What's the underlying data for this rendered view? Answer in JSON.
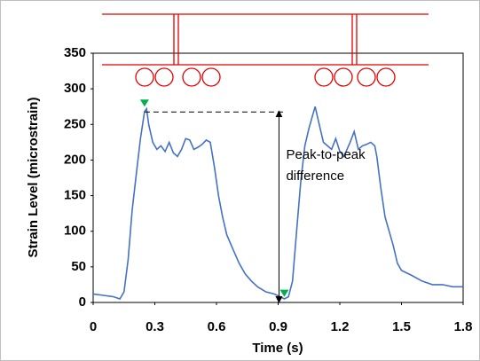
{
  "chart_data": {
    "type": "line",
    "x_label": "Time (s)",
    "y_label": "Strain Level (microstrain)",
    "annotation": "Peak-to-peak difference",
    "xlim": [
      0,
      1.8
    ],
    "xticks": [
      0,
      0.3,
      0.6,
      0.9,
      1.2,
      1.5,
      1.8
    ],
    "ylim": [
      0,
      350
    ],
    "yticks": [
      0,
      50,
      100,
      150,
      200,
      250,
      300,
      350
    ],
    "series": [
      {
        "color": "#4472c4",
        "x": [
          0,
          0.05,
          0.1,
          0.13,
          0.15,
          0.17,
          0.19,
          0.21,
          0.23,
          0.25,
          0.26,
          0.27,
          0.29,
          0.31,
          0.33,
          0.35,
          0.37,
          0.39,
          0.41,
          0.43,
          0.45,
          0.47,
          0.49,
          0.51,
          0.53,
          0.55,
          0.57,
          0.59,
          0.61,
          0.63,
          0.65,
          0.68,
          0.71,
          0.74,
          0.77,
          0.8,
          0.84,
          0.88,
          0.91,
          0.93,
          0.95,
          0.97,
          0.99,
          1.01,
          1.03,
          1.05,
          1.07,
          1.08,
          1.1,
          1.12,
          1.14,
          1.16,
          1.18,
          1.2,
          1.22,
          1.25,
          1.27,
          1.29,
          1.31,
          1.33,
          1.35,
          1.37,
          1.38,
          1.4,
          1.42,
          1.44,
          1.46,
          1.48,
          1.5,
          1.55,
          1.6,
          1.65,
          1.7,
          1.75,
          1.8
        ],
        "values": [
          12,
          10,
          8,
          5,
          15,
          60,
          130,
          180,
          230,
          268,
          272,
          250,
          225,
          215,
          220,
          212,
          225,
          210,
          205,
          215,
          230,
          228,
          215,
          218,
          222,
          228,
          225,
          190,
          150,
          120,
          95,
          75,
          55,
          40,
          30,
          22,
          15,
          12,
          8,
          5,
          8,
          30,
          100,
          170,
          220,
          245,
          265,
          275,
          250,
          225,
          220,
          215,
          230,
          212,
          205,
          225,
          240,
          215,
          220,
          222,
          225,
          220,
          205,
          160,
          120,
          100,
          80,
          55,
          45,
          38,
          30,
          25,
          25,
          22,
          22
        ]
      }
    ],
    "markers": [
      {
        "x": 0.25,
        "y": 275
      },
      {
        "x": 0.93,
        "y": 8
      }
    ],
    "marker_color": "#00b050"
  }
}
